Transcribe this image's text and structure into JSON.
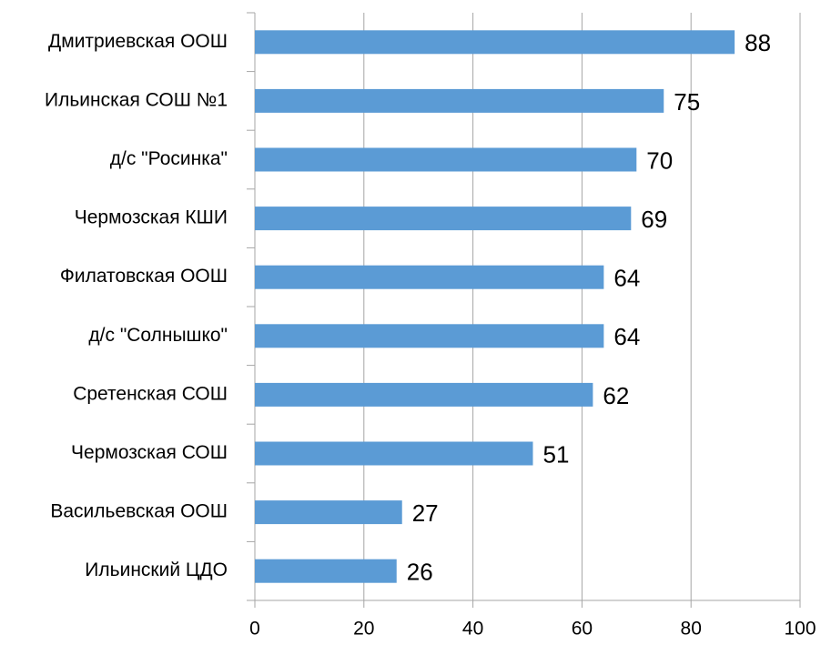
{
  "chart_data": {
    "type": "bar",
    "orientation": "horizontal",
    "categories": [
      "Дмитриевская ООШ",
      "Ильинская СОШ №1",
      "д/с \"Росинка\"",
      "Чермозская КШИ",
      "Филатовская ООШ",
      "д/с \"Солнышко\"",
      "Сретенская СОШ",
      "Чермозская СОШ",
      "Васильевская ООШ",
      "Ильинский ЦДО"
    ],
    "values": [
      88,
      75,
      70,
      69,
      64,
      64,
      62,
      51,
      27,
      26
    ],
    "color": "#5b9bd5",
    "xlim": [
      0,
      100
    ],
    "xticks": [
      0,
      20,
      40,
      60,
      80,
      100
    ],
    "grid": true
  }
}
